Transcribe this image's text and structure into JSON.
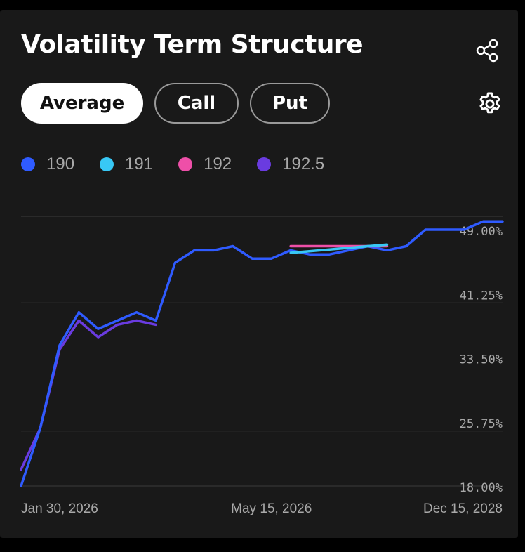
{
  "header": {
    "title": "Volatility Term Structure",
    "share_icon": "share-icon",
    "settings_icon": "gear-icon"
  },
  "tabs": [
    {
      "label": "Average",
      "active": true
    },
    {
      "label": "Call",
      "active": false
    },
    {
      "label": "Put",
      "active": false
    }
  ],
  "legend": [
    {
      "label": "190",
      "color": "#2f5bff"
    },
    {
      "label": "191",
      "color": "#38c8f5"
    },
    {
      "label": "192",
      "color": "#ee4fa8"
    },
    {
      "label": "192.5",
      "color": "#6a3be0"
    }
  ],
  "colors": {
    "background": "#191919",
    "grid": "#3a3a3a",
    "axis_text": "#a9a9a9"
  },
  "chart_data": {
    "type": "line",
    "title": "Volatility Term Structure",
    "ylim": [
      18.0,
      49.0
    ],
    "y_tick_values": [
      18.0,
      25.75,
      33.5,
      41.25,
      49.0
    ],
    "y_ticks": [
      "18.00%",
      "25.75%",
      "33.50%",
      "41.25%",
      "49.00%"
    ],
    "x_ticks": [
      "Jan 30, 2026",
      "May 15, 2026",
      "Dec 15, 2028"
    ],
    "x_tick_index": [
      0,
      13,
      25
    ],
    "x_count": 26,
    "grid": true,
    "legend_position": "top-left",
    "series": [
      {
        "name": "190",
        "color": "#2f5bff",
        "points": [
          [
            0,
            18.0
          ],
          [
            1,
            25.0
          ],
          [
            2,
            35.0
          ],
          [
            3,
            39.0
          ],
          [
            4,
            37.0
          ],
          [
            5,
            38.0
          ],
          [
            6,
            39.0
          ],
          [
            7,
            38.0
          ],
          [
            8,
            45.0
          ],
          [
            9,
            46.5
          ],
          [
            10,
            46.5
          ],
          [
            11,
            47.0
          ],
          [
            12,
            45.5
          ],
          [
            13,
            45.5
          ],
          [
            14,
            46.5
          ],
          [
            15,
            46.0
          ],
          [
            16,
            46.0
          ],
          [
            17,
            46.5
          ],
          [
            18,
            47.0
          ],
          [
            19,
            46.5
          ],
          [
            20,
            47.0
          ],
          [
            21,
            49.0
          ],
          [
            22,
            49.0
          ],
          [
            23,
            49.0
          ],
          [
            24,
            50.0
          ],
          [
            25,
            50.0
          ]
        ]
      },
      {
        "name": "191",
        "color": "#38c8f5",
        "points": [
          [
            14,
            46.2
          ],
          [
            19,
            47.2
          ]
        ]
      },
      {
        "name": "192",
        "color": "#ee4fa8",
        "points": [
          [
            14,
            47.0
          ],
          [
            19,
            47.0
          ]
        ]
      },
      {
        "name": "192.5",
        "color": "#6a3be0",
        "points": [
          [
            0,
            20.0
          ],
          [
            1,
            25.0
          ],
          [
            2,
            34.5
          ],
          [
            3,
            38.0
          ],
          [
            4,
            36.0
          ],
          [
            5,
            37.5
          ],
          [
            6,
            38.0
          ],
          [
            7,
            37.5
          ]
        ]
      }
    ]
  }
}
